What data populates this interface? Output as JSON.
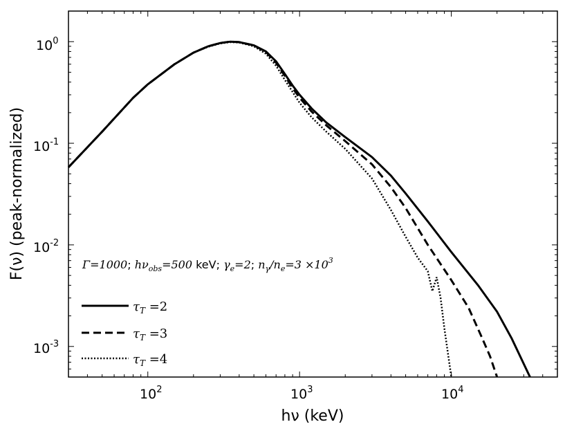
{
  "chart_data": {
    "type": "line",
    "xscale": "log",
    "yscale": "log",
    "xlim": [
      30,
      50000
    ],
    "ylim": [
      0.0005,
      2.0
    ],
    "xlabel": "hν (keV)",
    "ylabel": "F(ν) (peak-normalized)",
    "x_ticks": [
      {
        "value": 100,
        "base": "10",
        "exp": "2"
      },
      {
        "value": 1000,
        "base": "10",
        "exp": "3"
      },
      {
        "value": 10000,
        "base": "10",
        "exp": "4"
      }
    ],
    "y_ticks": [
      {
        "value": 1,
        "base": "10",
        "exp": "0"
      },
      {
        "value": 0.1,
        "base": "10",
        "exp": "-1"
      },
      {
        "value": 0.01,
        "base": "10",
        "exp": "-2"
      },
      {
        "value": 0.001,
        "base": "10",
        "exp": "-3"
      }
    ],
    "annotation": {
      "gamma": "Γ",
      "gamma_val": "1000",
      "hnu_obs_val": "500",
      "kev": "keV",
      "gamma_e_val": "2",
      "ratio_val": "3",
      "ratio_exp": "3"
    },
    "series": [
      {
        "name": "τT=2",
        "tau_value": "2",
        "dash": "solid",
        "points": [
          [
            30,
            0.058
          ],
          [
            50,
            0.13
          ],
          [
            80,
            0.28
          ],
          [
            100,
            0.38
          ],
          [
            150,
            0.6
          ],
          [
            200,
            0.78
          ],
          [
            250,
            0.9
          ],
          [
            300,
            0.97
          ],
          [
            350,
            1.0
          ],
          [
            400,
            0.99
          ],
          [
            500,
            0.92
          ],
          [
            600,
            0.8
          ],
          [
            700,
            0.64
          ],
          [
            800,
            0.48
          ],
          [
            900,
            0.37
          ],
          [
            1000,
            0.3
          ],
          [
            1200,
            0.22
          ],
          [
            1500,
            0.16
          ],
          [
            2000,
            0.115
          ],
          [
            3000,
            0.073
          ],
          [
            4000,
            0.048
          ],
          [
            5000,
            0.032
          ],
          [
            7000,
            0.017
          ],
          [
            10000,
            0.0085
          ],
          [
            15000,
            0.004
          ],
          [
            20000,
            0.0022
          ],
          [
            25000,
            0.0012
          ],
          [
            33000,
            0.0005
          ]
        ]
      },
      {
        "name": "τT=3",
        "tau_value": "3",
        "dash": "dashed",
        "points": [
          [
            30,
            0.058
          ],
          [
            50,
            0.13
          ],
          [
            80,
            0.28
          ],
          [
            100,
            0.38
          ],
          [
            150,
            0.6
          ],
          [
            200,
            0.78
          ],
          [
            250,
            0.9
          ],
          [
            300,
            0.97
          ],
          [
            350,
            1.0
          ],
          [
            400,
            0.99
          ],
          [
            500,
            0.92
          ],
          [
            600,
            0.79
          ],
          [
            700,
            0.62
          ],
          [
            800,
            0.46
          ],
          [
            900,
            0.35
          ],
          [
            1000,
            0.28
          ],
          [
            1200,
            0.205
          ],
          [
            1500,
            0.15
          ],
          [
            2000,
            0.105
          ],
          [
            3000,
            0.062
          ],
          [
            4000,
            0.037
          ],
          [
            5000,
            0.023
          ],
          [
            7000,
            0.01
          ],
          [
            10000,
            0.0045
          ],
          [
            13000,
            0.0024
          ],
          [
            16000,
            0.0012
          ],
          [
            18000,
            0.0008
          ],
          [
            20000,
            0.0005
          ]
        ]
      },
      {
        "name": "τT=4",
        "tau_value": "4",
        "dash": "dotted",
        "points": [
          [
            30,
            0.058
          ],
          [
            50,
            0.13
          ],
          [
            80,
            0.28
          ],
          [
            100,
            0.38
          ],
          [
            150,
            0.6
          ],
          [
            200,
            0.78
          ],
          [
            250,
            0.89
          ],
          [
            300,
            0.96
          ],
          [
            350,
            0.99
          ],
          [
            400,
            0.98
          ],
          [
            500,
            0.9
          ],
          [
            600,
            0.76
          ],
          [
            700,
            0.58
          ],
          [
            800,
            0.42
          ],
          [
            900,
            0.32
          ],
          [
            1000,
            0.25
          ],
          [
            1200,
            0.18
          ],
          [
            1500,
            0.13
          ],
          [
            2000,
            0.088
          ],
          [
            3000,
            0.045
          ],
          [
            4000,
            0.022
          ],
          [
            5000,
            0.012
          ],
          [
            6000,
            0.0075
          ],
          [
            7000,
            0.0055
          ],
          [
            7500,
            0.0035
          ],
          [
            8000,
            0.0048
          ],
          [
            8500,
            0.003
          ],
          [
            9000,
            0.0015
          ],
          [
            10000,
            0.0005
          ]
        ]
      }
    ]
  }
}
